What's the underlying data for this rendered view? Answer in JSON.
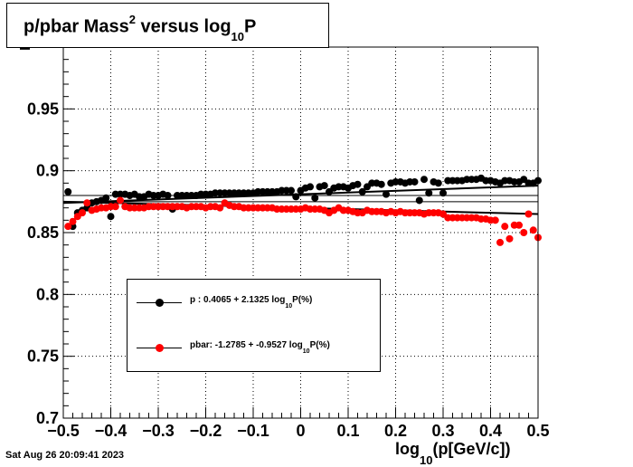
{
  "title": {
    "main": "p/pbar Mass",
    "sup": "2",
    "mid": " versus log",
    "sub": "10",
    "end": "P"
  },
  "xlabel": {
    "main": "log",
    "sub": "10",
    "end": "(p[GeV/c])"
  },
  "ylabel_fragment": "M",
  "timestamp": "Sat Aug 26 20:09:41 2023",
  "legend": [
    {
      "name": "p",
      "text_a": "p   : 0.4065 + 2.1325 log",
      "sub": "10",
      "text_b": "P(%)",
      "color": "#000000"
    },
    {
      "name": "pbar",
      "text_a": "pbar: -1.2785 + -0.9527 log",
      "sub": "10",
      "text_b": "P(%)",
      "color": "#ff0000"
    }
  ],
  "chart_data": {
    "type": "scatter",
    "xlim": [
      -0.5,
      0.5
    ],
    "ylim": [
      0.7,
      1.0
    ],
    "xticks": [
      "−0.5",
      "−0.4",
      "−0.3",
      "−0.2",
      "−0.1",
      "0",
      "0.1",
      "0.2",
      "0.3",
      "0.4",
      "0.5"
    ],
    "yticks": [
      "0.7",
      "0.75",
      "0.8",
      "0.85",
      "0.9",
      "0.95"
    ],
    "grid": true,
    "legend_position": "bottom-left",
    "reference_lines": [
      0.875,
      0.88
    ],
    "series": [
      {
        "name": "p",
        "color": "#000000",
        "fit": [
          [
            -0.5,
            0.874
          ],
          [
            0.5,
            0.888
          ]
        ],
        "points": [
          [
            -0.49,
            0.883
          ],
          [
            -0.48,
            0.855
          ],
          [
            -0.47,
            0.866
          ],
          [
            -0.46,
            0.868
          ],
          [
            -0.45,
            0.87
          ],
          [
            -0.44,
            0.874
          ],
          [
            -0.43,
            0.875
          ],
          [
            -0.42,
            0.876
          ],
          [
            -0.41,
            0.878
          ],
          [
            -0.4,
            0.863
          ],
          [
            -0.39,
            0.881
          ],
          [
            -0.38,
            0.881
          ],
          [
            -0.37,
            0.881
          ],
          [
            -0.36,
            0.88
          ],
          [
            -0.35,
            0.881
          ],
          [
            -0.34,
            0.879
          ],
          [
            -0.33,
            0.879
          ],
          [
            -0.32,
            0.881
          ],
          [
            -0.31,
            0.88
          ],
          [
            -0.3,
            0.88
          ],
          [
            -0.29,
            0.881
          ],
          [
            -0.28,
            0.88
          ],
          [
            -0.27,
            0.869
          ],
          [
            -0.26,
            0.88
          ],
          [
            -0.25,
            0.88
          ],
          [
            -0.24,
            0.88
          ],
          [
            -0.23,
            0.88
          ],
          [
            -0.22,
            0.88
          ],
          [
            -0.21,
            0.881
          ],
          [
            -0.2,
            0.881
          ],
          [
            -0.19,
            0.881
          ],
          [
            -0.18,
            0.882
          ],
          [
            -0.17,
            0.882
          ],
          [
            -0.16,
            0.882
          ],
          [
            -0.15,
            0.882
          ],
          [
            -0.14,
            0.882
          ],
          [
            -0.13,
            0.882
          ],
          [
            -0.12,
            0.882
          ],
          [
            -0.11,
            0.882
          ],
          [
            -0.1,
            0.882
          ],
          [
            -0.09,
            0.883
          ],
          [
            -0.08,
            0.883
          ],
          [
            -0.07,
            0.883
          ],
          [
            -0.06,
            0.883
          ],
          [
            -0.05,
            0.883
          ],
          [
            -0.04,
            0.884
          ],
          [
            -0.03,
            0.884
          ],
          [
            -0.02,
            0.884
          ],
          [
            -0.01,
            0.879
          ],
          [
            0.0,
            0.884
          ],
          [
            0.01,
            0.886
          ],
          [
            0.02,
            0.887
          ],
          [
            0.03,
            0.878
          ],
          [
            0.04,
            0.887
          ],
          [
            0.05,
            0.888
          ],
          [
            0.06,
            0.883
          ],
          [
            0.07,
            0.886
          ],
          [
            0.08,
            0.887
          ],
          [
            0.09,
            0.887
          ],
          [
            0.1,
            0.886
          ],
          [
            0.11,
            0.888
          ],
          [
            0.12,
            0.889
          ],
          [
            0.13,
            0.883
          ],
          [
            0.14,
            0.887
          ],
          [
            0.15,
            0.89
          ],
          [
            0.16,
            0.89
          ],
          [
            0.17,
            0.889
          ],
          [
            0.18,
            0.881
          ],
          [
            0.19,
            0.89
          ],
          [
            0.2,
            0.891
          ],
          [
            0.21,
            0.891
          ],
          [
            0.22,
            0.89
          ],
          [
            0.23,
            0.891
          ],
          [
            0.24,
            0.891
          ],
          [
            0.25,
            0.876
          ],
          [
            0.26,
            0.893
          ],
          [
            0.27,
            0.882
          ],
          [
            0.28,
            0.891
          ],
          [
            0.29,
            0.89
          ],
          [
            0.3,
            0.882
          ],
          [
            0.31,
            0.892
          ],
          [
            0.32,
            0.892
          ],
          [
            0.33,
            0.892
          ],
          [
            0.34,
            0.892
          ],
          [
            0.35,
            0.893
          ],
          [
            0.36,
            0.893
          ],
          [
            0.37,
            0.893
          ],
          [
            0.38,
            0.894
          ],
          [
            0.39,
            0.892
          ],
          [
            0.4,
            0.892
          ],
          [
            0.41,
            0.891
          ],
          [
            0.42,
            0.89
          ],
          [
            0.43,
            0.892
          ],
          [
            0.44,
            0.892
          ],
          [
            0.45,
            0.891
          ],
          [
            0.46,
            0.891
          ],
          [
            0.47,
            0.893
          ],
          [
            0.48,
            0.89
          ],
          [
            0.49,
            0.89
          ],
          [
            0.5,
            0.892
          ]
        ]
      },
      {
        "name": "pbar",
        "color": "#ff0000",
        "fit": [
          [
            -0.5,
            0.875
          ],
          [
            0.5,
            0.865
          ]
        ],
        "points": [
          [
            -0.49,
            0.855
          ],
          [
            -0.48,
            0.859
          ],
          [
            -0.47,
            0.863
          ],
          [
            -0.46,
            0.866
          ],
          [
            -0.45,
            0.874
          ],
          [
            -0.44,
            0.868
          ],
          [
            -0.43,
            0.869
          ],
          [
            -0.42,
            0.87
          ],
          [
            -0.41,
            0.87
          ],
          [
            -0.4,
            0.871
          ],
          [
            -0.39,
            0.871
          ],
          [
            -0.38,
            0.876
          ],
          [
            -0.37,
            0.871
          ],
          [
            -0.36,
            0.87
          ],
          [
            -0.35,
            0.87
          ],
          [
            -0.34,
            0.87
          ],
          [
            -0.33,
            0.87
          ],
          [
            -0.32,
            0.871
          ],
          [
            -0.31,
            0.871
          ],
          [
            -0.3,
            0.871
          ],
          [
            -0.29,
            0.871
          ],
          [
            -0.28,
            0.871
          ],
          [
            -0.27,
            0.871
          ],
          [
            -0.26,
            0.871
          ],
          [
            -0.25,
            0.871
          ],
          [
            -0.24,
            0.87
          ],
          [
            -0.23,
            0.871
          ],
          [
            -0.22,
            0.871
          ],
          [
            -0.21,
            0.871
          ],
          [
            -0.2,
            0.87
          ],
          [
            -0.19,
            0.871
          ],
          [
            -0.18,
            0.871
          ],
          [
            -0.17,
            0.87
          ],
          [
            -0.16,
            0.874
          ],
          [
            -0.15,
            0.872
          ],
          [
            -0.14,
            0.871
          ],
          [
            -0.13,
            0.871
          ],
          [
            -0.12,
            0.87
          ],
          [
            -0.11,
            0.87
          ],
          [
            -0.1,
            0.87
          ],
          [
            -0.09,
            0.87
          ],
          [
            -0.08,
            0.87
          ],
          [
            -0.07,
            0.87
          ],
          [
            -0.06,
            0.87
          ],
          [
            -0.05,
            0.869
          ],
          [
            -0.04,
            0.869
          ],
          [
            -0.03,
            0.869
          ],
          [
            -0.02,
            0.869
          ],
          [
            -0.01,
            0.869
          ],
          [
            0.0,
            0.869
          ],
          [
            0.01,
            0.87
          ],
          [
            0.02,
            0.869
          ],
          [
            0.03,
            0.869
          ],
          [
            0.04,
            0.869
          ],
          [
            0.05,
            0.868
          ],
          [
            0.06,
            0.866
          ],
          [
            0.07,
            0.868
          ],
          [
            0.08,
            0.87
          ],
          [
            0.09,
            0.868
          ],
          [
            0.1,
            0.868
          ],
          [
            0.11,
            0.867
          ],
          [
            0.12,
            0.866
          ],
          [
            0.13,
            0.866
          ],
          [
            0.14,
            0.868
          ],
          [
            0.15,
            0.867
          ],
          [
            0.16,
            0.867
          ],
          [
            0.17,
            0.867
          ],
          [
            0.18,
            0.866
          ],
          [
            0.19,
            0.867
          ],
          [
            0.2,
            0.866
          ],
          [
            0.21,
            0.867
          ],
          [
            0.22,
            0.866
          ],
          [
            0.23,
            0.866
          ],
          [
            0.24,
            0.866
          ],
          [
            0.25,
            0.866
          ],
          [
            0.26,
            0.865
          ],
          [
            0.27,
            0.866
          ],
          [
            0.28,
            0.866
          ],
          [
            0.29,
            0.866
          ],
          [
            0.3,
            0.865
          ],
          [
            0.31,
            0.862
          ],
          [
            0.32,
            0.862
          ],
          [
            0.33,
            0.862
          ],
          [
            0.34,
            0.862
          ],
          [
            0.35,
            0.862
          ],
          [
            0.36,
            0.862
          ],
          [
            0.37,
            0.862
          ],
          [
            0.38,
            0.861
          ],
          [
            0.39,
            0.861
          ],
          [
            0.4,
            0.86
          ],
          [
            0.41,
            0.86
          ],
          [
            0.42,
            0.842
          ],
          [
            0.43,
            0.855
          ],
          [
            0.44,
            0.845
          ],
          [
            0.45,
            0.856
          ],
          [
            0.46,
            0.856
          ],
          [
            0.47,
            0.85
          ],
          [
            0.48,
            0.865
          ],
          [
            0.49,
            0.852
          ],
          [
            0.5,
            0.846
          ]
        ]
      }
    ]
  }
}
